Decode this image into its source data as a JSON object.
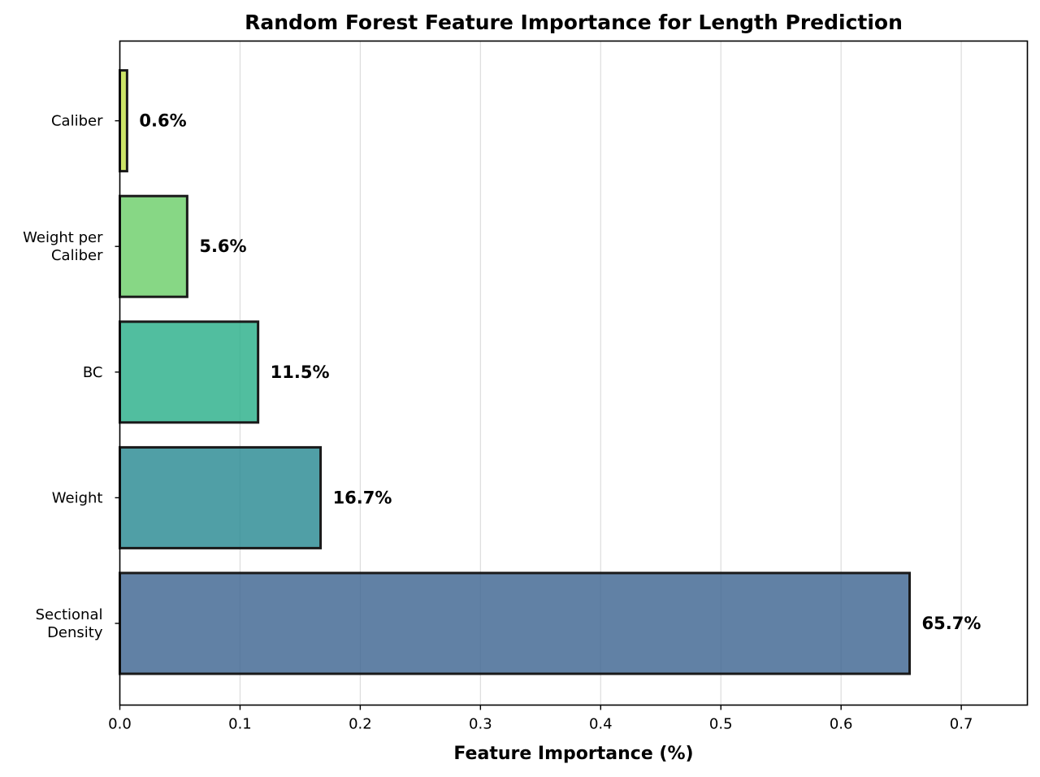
{
  "chart_data": {
    "type": "bar",
    "orientation": "horizontal",
    "title": "Random Forest Feature Importance for Length Prediction",
    "xlabel": "Feature Importance (%)",
    "ylabel": "",
    "xlim": [
      0,
      0.755
    ],
    "xticks": [
      0.0,
      0.1,
      0.2,
      0.3,
      0.4,
      0.5,
      0.6,
      0.7
    ],
    "xtick_labels": [
      "0.0",
      "0.1",
      "0.2",
      "0.3",
      "0.4",
      "0.5",
      "0.6",
      "0.7"
    ],
    "grid": "vertical",
    "categories": [
      [
        "Sectional",
        "Density"
      ],
      [
        "Weight"
      ],
      [
        "BC"
      ],
      [
        "Weight per",
        "Caliber"
      ],
      [
        "Caliber"
      ]
    ],
    "values": [
      0.657,
      0.167,
      0.115,
      0.056,
      0.006
    ],
    "data_labels": [
      "65.7%",
      "16.7%",
      "11.5%",
      "5.6%",
      "0.6%"
    ],
    "colors": [
      "#3e6591",
      "#2a8a92",
      "#2bb08a",
      "#6cce6a",
      "#c1de46"
    ]
  }
}
